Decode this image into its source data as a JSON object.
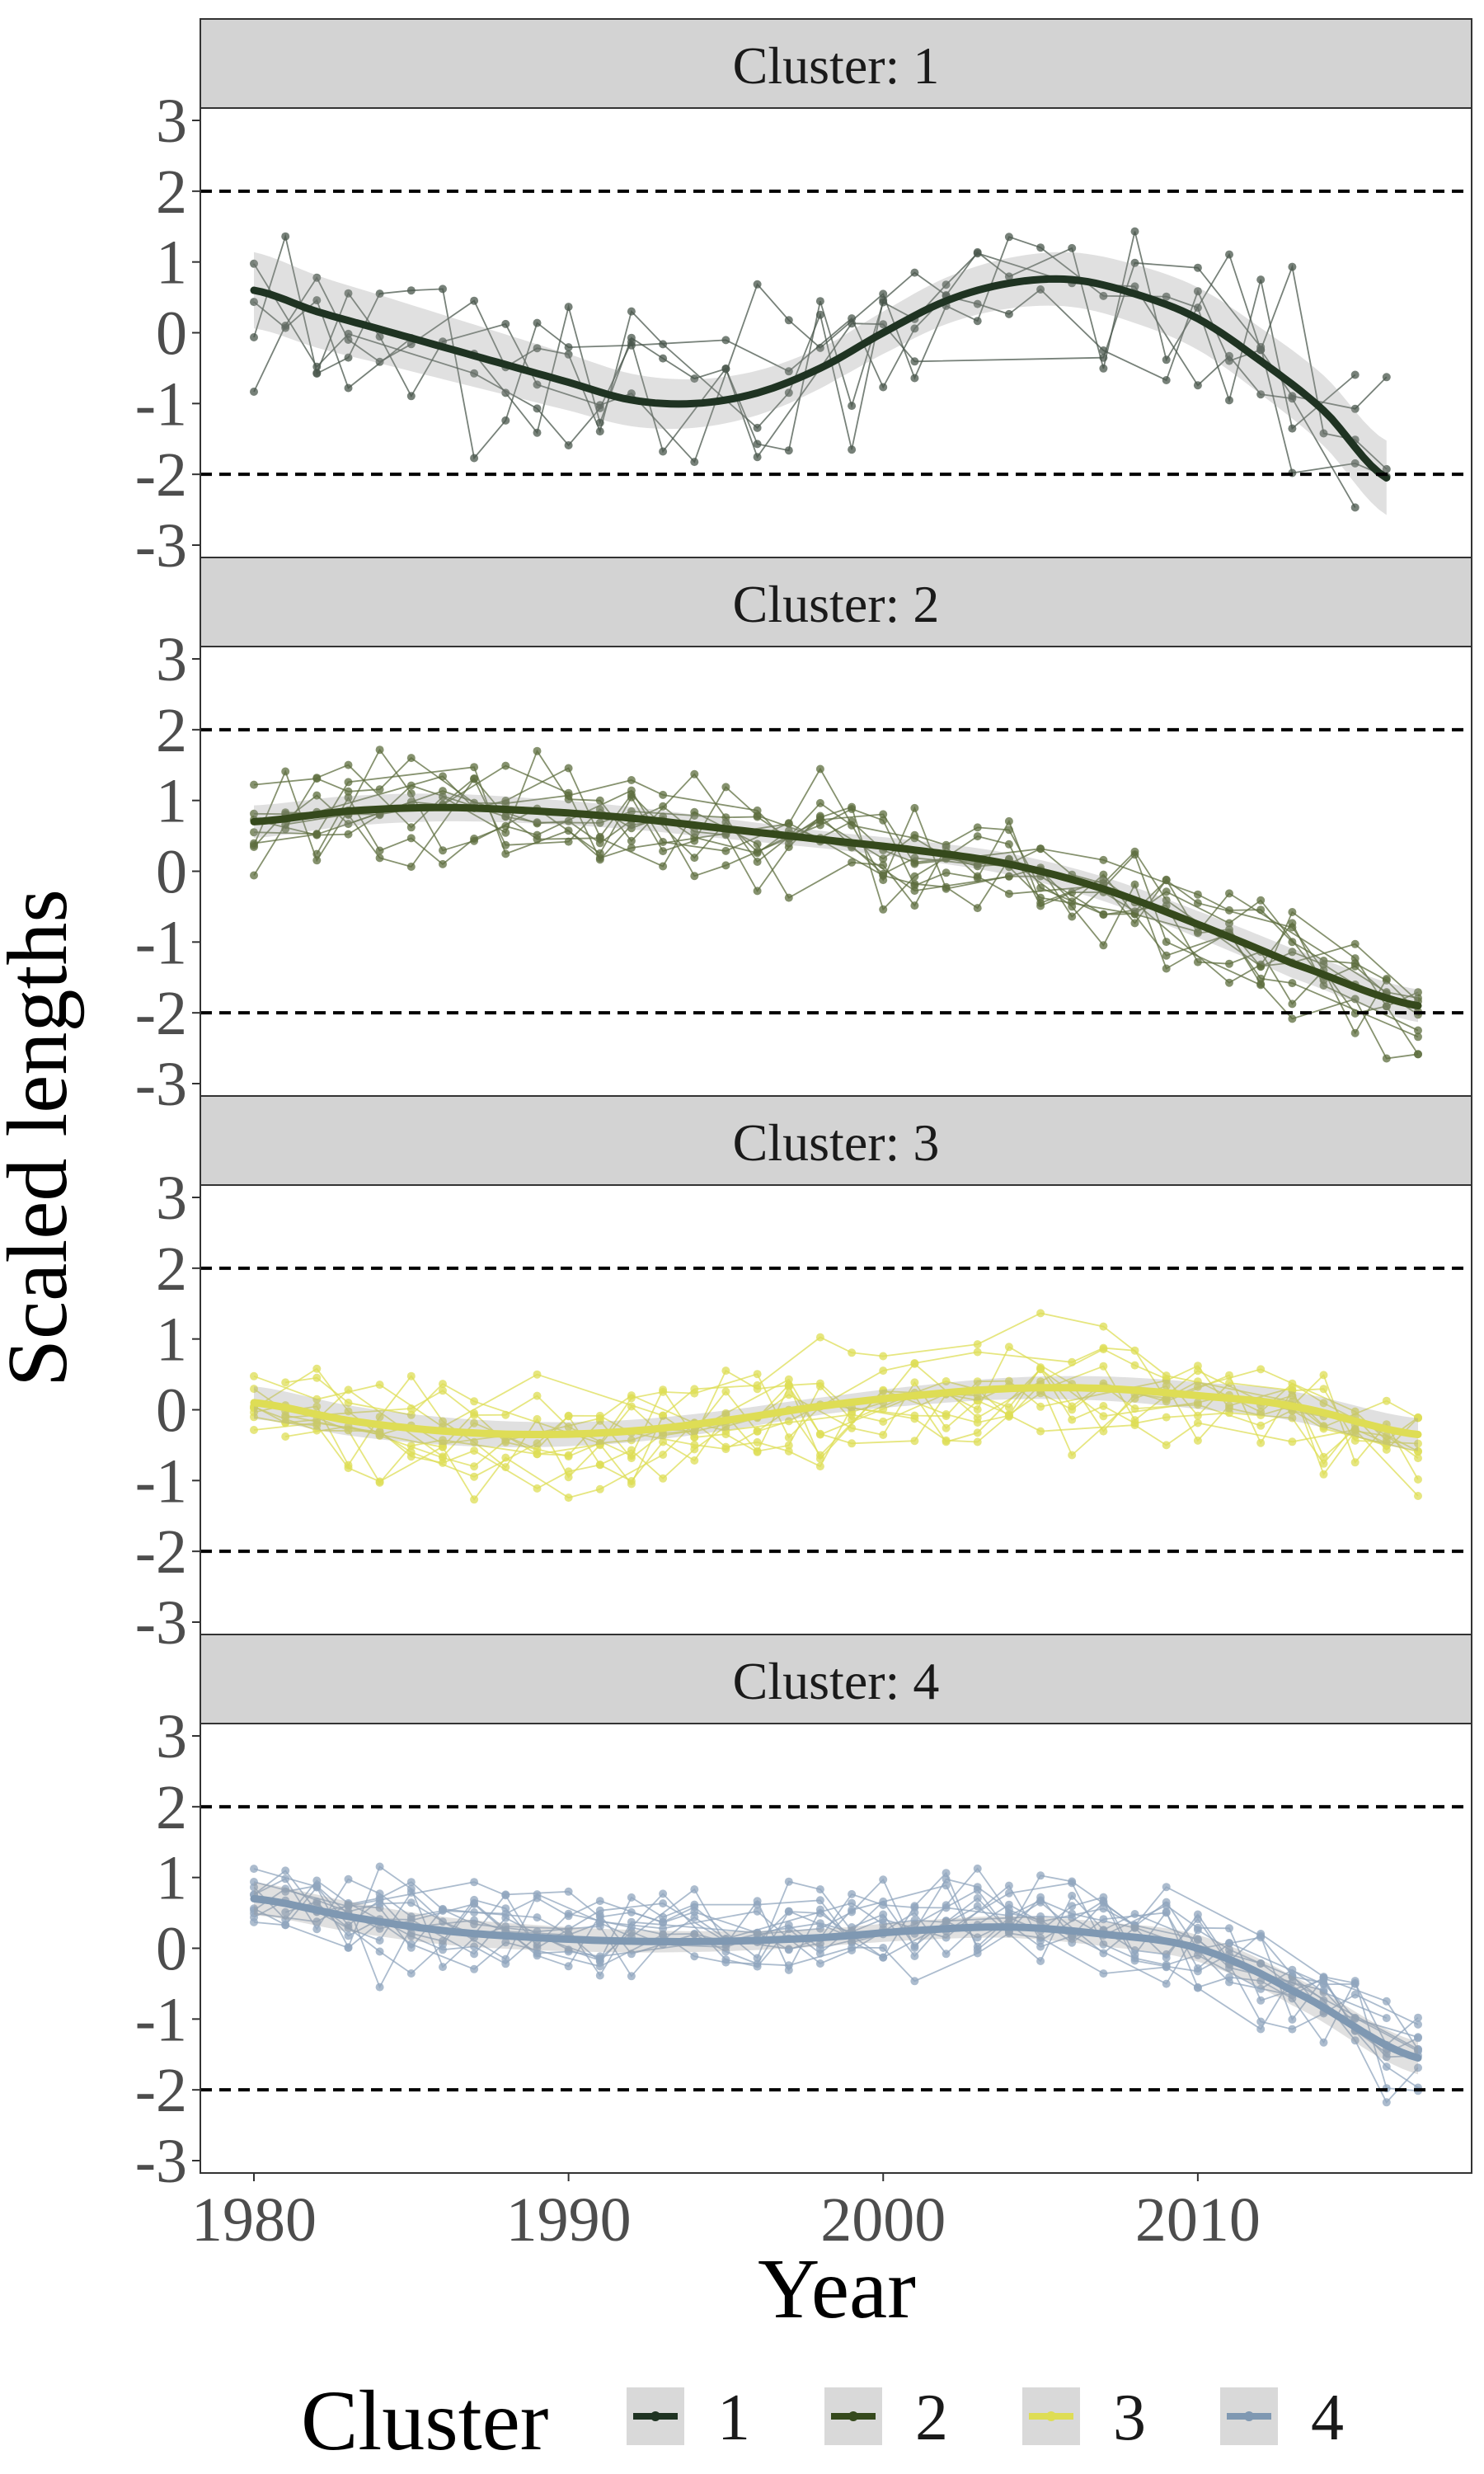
{
  "chart_data": {
    "type": "line",
    "facet_prefix": "Cluster: ",
    "xlabel": "Year",
    "ylabel": "Scaled lengths",
    "xlim": [
      1980,
      2017
    ],
    "ylim": [
      -3,
      3
    ],
    "x_ticks": [
      1980,
      1990,
      2000,
      2010
    ],
    "y_ticks": [
      "3",
      "2",
      "1",
      "0",
      "-1",
      "-2",
      "-3"
    ],
    "reference_lines": [
      2,
      -2
    ],
    "grid": false,
    "legend": {
      "title": "Cluster",
      "position": "bottom"
    },
    "panels": [
      {
        "strip": "Cluster: 1",
        "cluster": "1",
        "color": "#1f3322",
        "point_color": "#4a574c",
        "n_series": 5,
        "trend": {
          "x": [
            1980,
            1982,
            1984,
            1986,
            1988,
            1990,
            1992,
            1994,
            1996,
            1998,
            2000,
            2002,
            2004,
            2006,
            2008,
            2010,
            2012,
            2014,
            2016
          ],
          "y": [
            0.6,
            0.3,
            0.05,
            -0.2,
            -0.45,
            -0.7,
            -0.95,
            -1.0,
            -0.85,
            -0.5,
            0.0,
            0.45,
            0.7,
            0.75,
            0.55,
            0.2,
            -0.4,
            -1.1,
            -2.05
          ]
        }
      },
      {
        "strip": "Cluster: 2",
        "cluster": "2",
        "color": "#35491c",
        "point_color": "#5d6e3f",
        "n_series": 11,
        "trend": {
          "x": [
            1980,
            1983,
            1986,
            1989,
            1992,
            1995,
            1998,
            2001,
            2004,
            2007,
            2010,
            2013,
            2017
          ],
          "y": [
            0.7,
            0.85,
            0.9,
            0.85,
            0.75,
            0.6,
            0.45,
            0.3,
            0.1,
            -0.25,
            -0.75,
            -1.3,
            -1.9
          ]
        }
      },
      {
        "strip": "Cluster: 3",
        "cluster": "3",
        "color": "#dedd55",
        "point_color": "#dedd55",
        "n_series": 12,
        "trend": {
          "x": [
            1980,
            1983,
            1986,
            1989,
            1992,
            1995,
            1998,
            2001,
            2004,
            2007,
            2010,
            2013,
            2017
          ],
          "y": [
            0.1,
            -0.15,
            -0.3,
            -0.35,
            -0.3,
            -0.15,
            0.05,
            0.2,
            0.3,
            0.3,
            0.2,
            0.05,
            -0.35
          ]
        }
      },
      {
        "strip": "Cluster: 4",
        "cluster": "4",
        "color": "#7f98b2",
        "point_color": "#90a6bd",
        "n_series": 14,
        "trend": {
          "x": [
            1980,
            1983,
            1986,
            1989,
            1992,
            1995,
            1998,
            2001,
            2004,
            2007,
            2010,
            2013,
            2017
          ],
          "y": [
            0.7,
            0.45,
            0.25,
            0.15,
            0.1,
            0.1,
            0.15,
            0.25,
            0.3,
            0.2,
            0.0,
            -0.6,
            -1.55
          ]
        }
      }
    ]
  }
}
